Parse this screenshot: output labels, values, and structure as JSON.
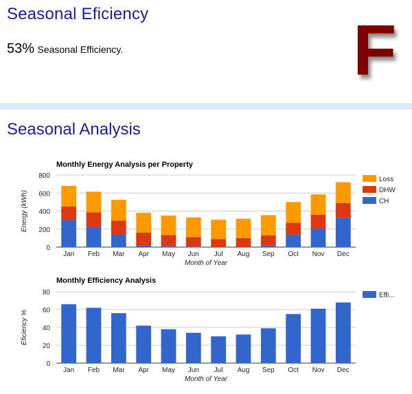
{
  "header": {
    "title": "Seasonal Eficiency",
    "efficiency_value": "53%",
    "efficiency_label": "Seasonal Efficiency.",
    "grade": "F"
  },
  "analysis": {
    "title": "Seasonal Analysis"
  },
  "colors": {
    "loss": "#ff9900",
    "dhw": "#dc3912",
    "ch": "#3366cc",
    "efficiency": "#3366cc",
    "grade": "#800000"
  },
  "chart_data": [
    {
      "type": "bar",
      "stacked": true,
      "title": "Monthly Energy Analysis per Property",
      "xlabel": "Month of Year",
      "ylabel": "Energy (kWh)",
      "ylim": [
        0,
        800
      ],
      "yticks": [
        0,
        200,
        400,
        600,
        800
      ],
      "grid": true,
      "legend": "right",
      "categories": [
        "Jan",
        "Feb",
        "Mar",
        "Apr",
        "May",
        "Jun",
        "Jul",
        "Aug",
        "Sep",
        "Oct",
        "Nov",
        "Dec"
      ],
      "series": [
        {
          "name": "CH",
          "color": "#3366cc",
          "values": [
            300,
            225,
            140,
            20,
            10,
            5,
            0,
            0,
            20,
            140,
            205,
            325
          ]
        },
        {
          "name": "DHW",
          "color": "#dc3912",
          "values": [
            150,
            160,
            155,
            140,
            125,
            105,
            90,
            100,
            110,
            130,
            155,
            165
          ]
        },
        {
          "name": "Loss",
          "color": "#ff9900",
          "values": [
            230,
            230,
            230,
            220,
            215,
            220,
            215,
            215,
            225,
            230,
            225,
            230
          ]
        }
      ]
    },
    {
      "type": "bar",
      "title": "Monthly Efficiency Analysis",
      "xlabel": "Month of Year",
      "ylabel": "Eficiency %",
      "ylim": [
        0,
        80
      ],
      "yticks": [
        0,
        20,
        40,
        60,
        80
      ],
      "grid": true,
      "legend": "right",
      "categories": [
        "Jan",
        "Feb",
        "Mar",
        "Apr",
        "May",
        "Jun",
        "Jul",
        "Aug",
        "Sep",
        "Oct",
        "Nov",
        "Dec"
      ],
      "series": [
        {
          "name": "Effi...",
          "color": "#3366cc",
          "values": [
            66,
            62,
            56,
            42,
            38,
            34,
            30,
            32,
            39,
            55,
            61,
            68
          ]
        }
      ]
    }
  ]
}
